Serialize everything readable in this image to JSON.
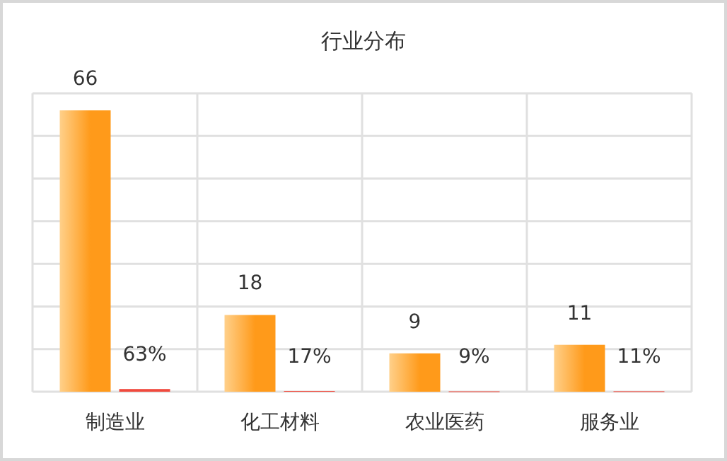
{
  "chart_data": {
    "type": "bar",
    "title": "行业分布",
    "categories": [
      "制造业",
      "化工材料",
      "农业医药",
      "服务业"
    ],
    "series": [
      {
        "color": "#ff9a1a",
        "values": [
          66,
          18,
          9,
          11
        ]
      },
      {
        "color": "#f04a3e",
        "values": [
          0.63,
          0.17,
          0.09,
          0.11
        ],
        "value_labels": [
          "63%",
          "17%",
          "9%",
          "11%"
        ]
      }
    ],
    "ylim": [
      0,
      70
    ],
    "yticks": [
      {
        "value": 0,
        "label": null
      },
      {
        "value": 10,
        "label": null
      },
      {
        "value": 20,
        "label": null
      },
      {
        "value": 30,
        "label": null
      },
      {
        "value": 40,
        "label": null
      },
      {
        "value": 50,
        "label": null
      },
      {
        "value": 60,
        "label": null
      },
      {
        "value": 70,
        "label": null
      }
    ],
    "grid": true,
    "data_labels": true
  }
}
